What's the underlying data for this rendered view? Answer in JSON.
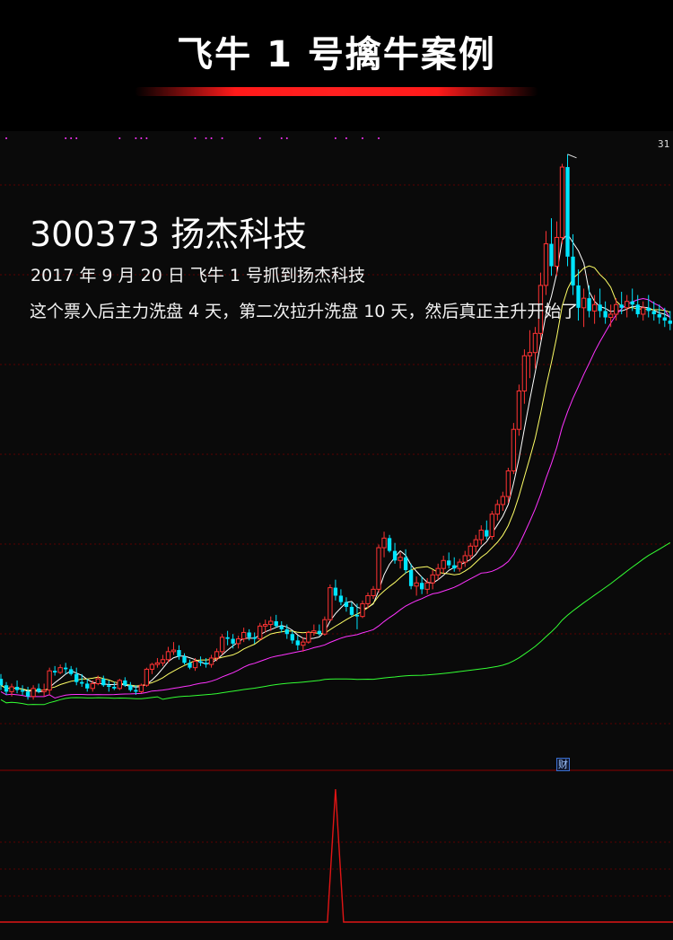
{
  "header": {
    "title": "飞牛 1 号擒牛案例"
  },
  "annotation": {
    "stock": "300373 扬杰科技",
    "date_line": "2017 年 9 月 20 日 飞牛 1 号抓到扬杰科技",
    "description": "这个票入后主力洗盘 4 天，第二次拉升洗盘 10 天，然后真正主升开始了",
    "peak_label": "31",
    "fin_tag": "财"
  },
  "colors": {
    "up": "#ff3333",
    "down": "#00e5ff",
    "ma5": "#ffffff",
    "ma10": "#ffff66",
    "ma20": "#ff33ff",
    "ma60": "#33ff33",
    "signal": "#e01515",
    "grid": "#5a0000"
  },
  "chart_data": [
    {
      "type": "candlestick",
      "title": "",
      "series_main": "price",
      "x": [
        1,
        2,
        3,
        4,
        5,
        6,
        7,
        8,
        9,
        10,
        11,
        12,
        13,
        14,
        15,
        16,
        17,
        18,
        19,
        20,
        21,
        22,
        23,
        24,
        25,
        26,
        27,
        28,
        29,
        30,
        31,
        32,
        33,
        34,
        35,
        36,
        37,
        38,
        39,
        40,
        41,
        42,
        43,
        44,
        45,
        46,
        47,
        48,
        49,
        50,
        51,
        52,
        53,
        54,
        55,
        56,
        57,
        58,
        59,
        60,
        61,
        62,
        63,
        64,
        65,
        66,
        67,
        68,
        69,
        70,
        71,
        72,
        73,
        74,
        75,
        76,
        77,
        78,
        79,
        80,
        81,
        82,
        83,
        84,
        85,
        86,
        87,
        88,
        89,
        90,
        91,
        92,
        93,
        94,
        95,
        96,
        97,
        98,
        99,
        100,
        101,
        102,
        103,
        104,
        105,
        106,
        107,
        108,
        109,
        110,
        111,
        112,
        113,
        114,
        115,
        116,
        117,
        118,
        119,
        120,
        121,
        122,
        123,
        124,
        125
      ],
      "ohlc": [
        [
          14.6,
          14.75,
          14.25,
          14.4
        ],
        [
          14.4,
          14.5,
          14.1,
          14.2
        ],
        [
          14.2,
          14.45,
          14.05,
          14.35
        ],
        [
          14.35,
          14.55,
          14.15,
          14.25
        ],
        [
          14.25,
          14.4,
          14.1,
          14.2
        ],
        [
          14.2,
          14.35,
          13.95,
          14.05
        ],
        [
          14.05,
          14.4,
          13.95,
          14.3
        ],
        [
          14.3,
          14.45,
          14.15,
          14.2
        ],
        [
          14.2,
          14.45,
          14.05,
          14.25
        ],
        [
          14.25,
          14.95,
          14.1,
          14.85
        ],
        [
          14.85,
          15.0,
          14.7,
          14.8
        ],
        [
          14.8,
          15.05,
          14.75,
          14.95
        ],
        [
          14.95,
          15.1,
          14.75,
          14.9
        ],
        [
          14.9,
          15.0,
          14.7,
          14.75
        ],
        [
          14.75,
          14.95,
          14.4,
          14.5
        ],
        [
          14.5,
          14.75,
          14.35,
          14.45
        ],
        [
          14.45,
          14.6,
          14.2,
          14.3
        ],
        [
          14.3,
          14.55,
          14.2,
          14.45
        ],
        [
          14.45,
          14.7,
          14.4,
          14.6
        ],
        [
          14.6,
          14.7,
          14.35,
          14.4
        ],
        [
          14.4,
          14.55,
          14.2,
          14.35
        ],
        [
          14.35,
          14.5,
          14.25,
          14.3
        ],
        [
          14.3,
          14.6,
          14.25,
          14.55
        ],
        [
          14.55,
          14.65,
          14.35,
          14.4
        ],
        [
          14.4,
          14.5,
          14.2,
          14.25
        ],
        [
          14.25,
          14.4,
          14.1,
          14.2
        ],
        [
          14.2,
          14.45,
          14.15,
          14.4
        ],
        [
          14.4,
          14.95,
          14.35,
          14.9
        ],
        [
          14.9,
          15.1,
          14.75,
          15.05
        ],
        [
          15.05,
          15.25,
          14.95,
          15.1
        ],
        [
          15.1,
          15.35,
          15.0,
          15.2
        ],
        [
          15.2,
          15.6,
          15.1,
          15.45
        ],
        [
          15.45,
          15.75,
          15.35,
          15.5
        ],
        [
          15.5,
          15.65,
          15.2,
          15.3
        ],
        [
          15.3,
          15.4,
          15.05,
          15.1
        ],
        [
          15.1,
          15.2,
          14.9,
          14.95
        ],
        [
          14.95,
          15.25,
          14.85,
          15.15
        ],
        [
          15.15,
          15.3,
          15.0,
          15.1
        ],
        [
          15.1,
          15.25,
          14.95,
          15.05
        ],
        [
          15.05,
          15.35,
          14.95,
          15.25
        ],
        [
          15.25,
          15.55,
          15.15,
          15.45
        ],
        [
          15.45,
          16.0,
          15.35,
          15.9
        ],
        [
          15.9,
          16.1,
          15.65,
          15.85
        ],
        [
          15.85,
          16.0,
          15.55,
          15.7
        ],
        [
          15.7,
          15.95,
          15.55,
          15.85
        ],
        [
          15.85,
          16.2,
          15.75,
          16.05
        ],
        [
          16.05,
          16.15,
          15.8,
          15.9
        ],
        [
          15.9,
          16.05,
          15.7,
          15.85
        ],
        [
          15.85,
          16.35,
          15.8,
          16.25
        ],
        [
          16.25,
          16.45,
          16.05,
          16.3
        ],
        [
          16.3,
          16.55,
          16.1,
          16.4
        ],
        [
          16.4,
          16.6,
          16.2,
          16.25
        ],
        [
          16.25,
          16.4,
          16.05,
          16.15
        ],
        [
          16.15,
          16.3,
          15.85,
          16.0
        ],
        [
          16.0,
          16.1,
          15.7,
          15.8
        ],
        [
          15.8,
          15.95,
          15.5,
          15.65
        ],
        [
          15.65,
          15.9,
          15.45,
          15.75
        ],
        [
          15.75,
          16.1,
          15.7,
          16.05
        ],
        [
          16.05,
          16.3,
          15.95,
          16.1
        ],
        [
          16.1,
          16.3,
          15.95,
          16.0
        ],
        [
          16.0,
          16.55,
          15.95,
          16.45
        ],
        [
          16.45,
          17.55,
          16.4,
          17.45
        ],
        [
          17.45,
          17.7,
          17.05,
          17.2
        ],
        [
          17.2,
          17.4,
          16.9,
          17.0
        ],
        [
          17.0,
          17.15,
          16.7,
          16.85
        ],
        [
          16.85,
          17.0,
          16.55,
          16.6
        ],
        [
          16.6,
          16.95,
          16.15,
          16.55
        ],
        [
          16.55,
          17.05,
          16.5,
          16.95
        ],
        [
          16.95,
          17.3,
          16.8,
          17.2
        ],
        [
          17.2,
          17.5,
          17.1,
          17.4
        ],
        [
          17.4,
          18.8,
          17.3,
          18.7
        ],
        [
          18.7,
          19.2,
          18.4,
          19.0
        ],
        [
          19.0,
          19.1,
          18.55,
          18.6
        ],
        [
          18.6,
          18.85,
          18.2,
          18.3
        ],
        [
          18.3,
          18.55,
          18.05,
          18.4
        ],
        [
          18.4,
          18.65,
          17.9,
          18.0
        ],
        [
          18.0,
          18.2,
          17.4,
          17.5
        ],
        [
          17.5,
          17.8,
          17.2,
          17.6
        ],
        [
          17.6,
          17.8,
          17.25,
          17.4
        ],
        [
          17.4,
          17.75,
          17.25,
          17.6
        ],
        [
          17.6,
          18.0,
          17.4,
          17.85
        ],
        [
          17.85,
          18.2,
          17.7,
          18.05
        ],
        [
          18.05,
          18.45,
          17.9,
          18.3
        ],
        [
          18.3,
          18.55,
          18.05,
          18.15
        ],
        [
          18.15,
          18.4,
          17.95,
          18.05
        ],
        [
          18.05,
          18.35,
          17.95,
          18.25
        ],
        [
          18.25,
          18.6,
          18.1,
          18.45
        ],
        [
          18.45,
          18.85,
          18.3,
          18.75
        ],
        [
          18.75,
          19.1,
          18.55,
          18.95
        ],
        [
          18.95,
          19.4,
          18.8,
          19.25
        ],
        [
          19.25,
          19.55,
          18.95,
          19.05
        ],
        [
          19.05,
          19.85,
          18.95,
          19.75
        ],
        [
          19.75,
          20.2,
          19.55,
          20.05
        ],
        [
          20.05,
          20.45,
          19.85,
          20.3
        ],
        [
          20.3,
          21.2,
          20.1,
          21.1
        ],
        [
          21.1,
          22.6,
          21.0,
          22.4
        ],
        [
          22.4,
          23.8,
          22.2,
          23.6
        ],
        [
          23.6,
          24.9,
          23.2,
          24.7
        ],
        [
          24.7,
          25.5,
          24.0,
          24.8
        ],
        [
          24.8,
          25.6,
          24.3,
          25.4
        ],
        [
          25.4,
          27.3,
          25.2,
          26.9
        ],
        [
          26.9,
          28.6,
          26.6,
          28.2
        ],
        [
          28.2,
          29.0,
          27.2,
          27.5
        ],
        [
          27.5,
          28.9,
          27.2,
          28.4
        ],
        [
          28.4,
          30.7,
          28.2,
          30.6
        ],
        [
          30.6,
          31.0,
          27.5,
          27.8
        ],
        [
          27.8,
          28.5,
          26.6,
          26.9
        ],
        [
          26.9,
          27.4,
          25.8,
          26.2
        ],
        [
          26.2,
          26.8,
          25.6,
          26.5
        ],
        [
          26.5,
          26.9,
          25.9,
          26.1
        ],
        [
          26.1,
          26.6,
          25.7,
          26.3
        ],
        [
          26.3,
          26.8,
          25.9,
          26.1
        ],
        [
          26.1,
          26.4,
          25.7,
          25.9
        ],
        [
          25.9,
          26.3,
          25.6,
          26.0
        ],
        [
          26.0,
          26.5,
          25.8,
          26.3
        ],
        [
          26.3,
          26.7,
          26.0,
          26.2
        ],
        [
          26.2,
          26.6,
          25.9,
          26.4
        ],
        [
          26.4,
          26.8,
          26.1,
          26.3
        ],
        [
          26.3,
          26.6,
          25.9,
          26.0
        ],
        [
          26.0,
          26.4,
          25.8,
          26.2
        ],
        [
          26.2,
          26.6,
          25.9,
          26.1
        ],
        [
          26.1,
          26.4,
          25.8,
          26.0
        ],
        [
          26.0,
          26.3,
          25.7,
          25.9
        ],
        [
          25.9,
          26.2,
          25.6,
          25.8
        ],
        [
          25.8,
          26.1,
          25.5,
          25.7
        ]
      ],
      "visible_count": 125,
      "ma_periods": [
        5,
        10,
        20,
        60
      ],
      "price_range": [
        13.2,
        31.5
      ],
      "grid": true
    },
    {
      "type": "line",
      "title": "",
      "indicator": "signal",
      "signal_index": 62,
      "signal_height": 1.0,
      "grid": true
    }
  ]
}
